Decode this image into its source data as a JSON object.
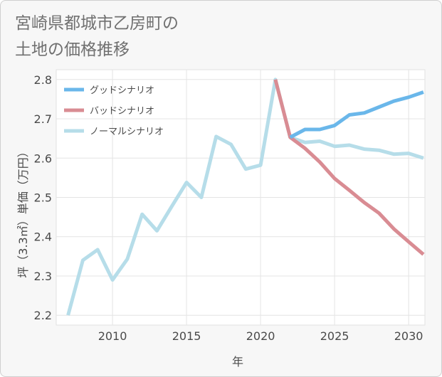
{
  "title_line1": "宮崎県都城市乙房町の",
  "title_line2": "土地の価格推移",
  "chart_data": {
    "type": "line",
    "xlabel": "年",
    "ylabel": "坪（3.3㎡）単価（万円）",
    "xlim": [
      2006.2,
      2031.1
    ],
    "ylim": [
      2.175,
      2.825
    ],
    "xticks": [
      2010,
      2015,
      2020,
      2025,
      2030
    ],
    "yticks": [
      2.2,
      2.3,
      2.4,
      2.5,
      2.6,
      2.7,
      2.8
    ],
    "ytick_labels": [
      "2.2",
      "2.3",
      "2.4",
      "2.5",
      "2.6",
      "2.7",
      "2.8"
    ],
    "grid": true,
    "legend_position": "top-left",
    "series": [
      {
        "name": "グッドシナリオ",
        "color": "#6ab7ea",
        "x": [
          2022,
          2023,
          2024,
          2025,
          2026,
          2027,
          2028,
          2029,
          2030,
          2031
        ],
        "y": [
          2.653,
          2.673,
          2.673,
          2.683,
          2.71,
          2.715,
          2.73,
          2.745,
          2.755,
          2.768
        ]
      },
      {
        "name": "バッドシナリオ",
        "color": "#d98c93",
        "x": [
          2021,
          2022,
          2023,
          2024,
          2025,
          2026,
          2027,
          2028,
          2029,
          2030,
          2031
        ],
        "y": [
          2.8,
          2.653,
          2.625,
          2.59,
          2.548,
          2.518,
          2.487,
          2.46,
          2.42,
          2.387,
          2.355
        ]
      },
      {
        "name": "ノーマルシナリオ",
        "color": "#b6dde9",
        "x": [
          2007,
          2008,
          2009,
          2010,
          2011,
          2012,
          2013,
          2014,
          2015,
          2016,
          2017,
          2018,
          2019,
          2020,
          2021,
          2022,
          2023,
          2024,
          2025,
          2026,
          2027,
          2028,
          2029,
          2030,
          2031
        ],
        "y": [
          2.2,
          2.34,
          2.367,
          2.29,
          2.343,
          2.457,
          2.415,
          2.477,
          2.538,
          2.5,
          2.655,
          2.635,
          2.572,
          2.582,
          2.8,
          2.653,
          2.64,
          2.643,
          2.63,
          2.633,
          2.623,
          2.62,
          2.61,
          2.612,
          2.6
        ]
      }
    ]
  }
}
